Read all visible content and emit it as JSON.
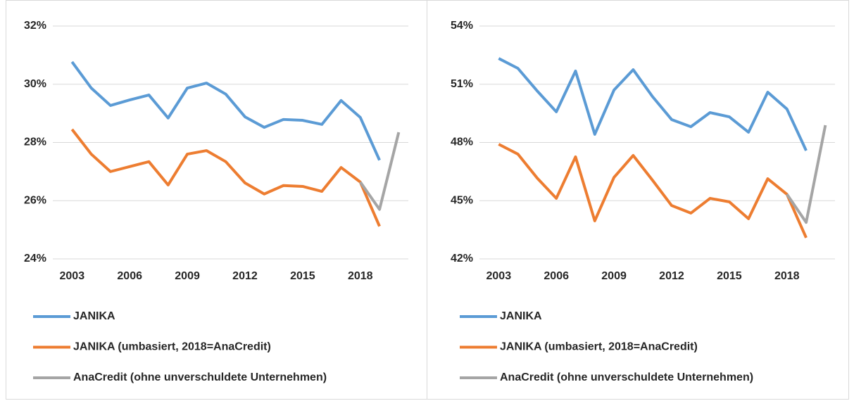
{
  "chart_data": [
    {
      "type": "line",
      "x": [
        2003,
        2004,
        2005,
        2006,
        2007,
        2008,
        2009,
        2010,
        2011,
        2012,
        2013,
        2014,
        2015,
        2016,
        2017,
        2018,
        2019,
        2020
      ],
      "xlim": [
        2002,
        2020.5
      ],
      "xticks": [
        2003,
        2006,
        2009,
        2012,
        2015,
        2018
      ],
      "ylim": [
        24,
        32
      ],
      "yticks": [
        {
          "value": 24,
          "label": "24%"
        },
        {
          "value": 26,
          "label": "26%"
        },
        {
          "value": 28,
          "label": "28%"
        },
        {
          "value": 30,
          "label": "30%"
        },
        {
          "value": 32,
          "label": "32%"
        }
      ],
      "grid": true,
      "legend": "bottom",
      "series": [
        {
          "name": "JANIKA",
          "color": "#5b9bd5",
          "values": [
            30.77,
            29.87,
            29.27,
            29.46,
            29.63,
            28.84,
            29.87,
            30.04,
            29.66,
            28.88,
            28.52,
            28.79,
            28.76,
            28.62,
            29.44,
            28.86,
            27.39,
            null
          ]
        },
        {
          "name": "JANIKA (umbasiert, 2018=AnaCredit)",
          "color": "#ed7d31",
          "values": [
            28.45,
            27.6,
            27.0,
            27.17,
            27.34,
            26.54,
            27.6,
            27.72,
            27.34,
            26.61,
            26.23,
            26.52,
            26.49,
            26.32,
            27.14,
            26.64,
            25.12,
            null
          ]
        },
        {
          "name": "AnaCredit (ohne unverschuldete Unternehmen)",
          "color": "#a5a5a5",
          "values": [
            null,
            null,
            null,
            null,
            null,
            null,
            null,
            null,
            null,
            null,
            null,
            null,
            null,
            null,
            null,
            26.64,
            25.7,
            28.35
          ]
        }
      ]
    },
    {
      "type": "line",
      "x": [
        2003,
        2004,
        2005,
        2006,
        2007,
        2008,
        2009,
        2010,
        2011,
        2012,
        2013,
        2014,
        2015,
        2016,
        2017,
        2018,
        2019,
        2020
      ],
      "xlim": [
        2002,
        2020.5
      ],
      "xticks": [
        2003,
        2006,
        2009,
        2012,
        2015,
        2018
      ],
      "ylim": [
        42,
        54
      ],
      "yticks": [
        {
          "value": 42,
          "label": "42%"
        },
        {
          "value": 45,
          "label": "45%"
        },
        {
          "value": 48,
          "label": "48%"
        },
        {
          "value": 51,
          "label": "51%"
        },
        {
          "value": 54,
          "label": "54%"
        }
      ],
      "grid": true,
      "legend": "bottom",
      "series": [
        {
          "name": "JANIKA",
          "color": "#5b9bd5",
          "values": [
            52.33,
            51.82,
            50.66,
            49.58,
            51.68,
            48.42,
            50.7,
            51.75,
            50.37,
            49.18,
            48.81,
            49.54,
            49.32,
            48.53,
            50.59,
            49.72,
            47.58,
            null
          ]
        },
        {
          "name": "JANIKA (umbasiert, 2018=AnaCredit)",
          "color": "#ed7d31",
          "values": [
            47.91,
            47.4,
            46.17,
            45.12,
            47.26,
            43.96,
            46.2,
            47.33,
            46.06,
            44.75,
            44.36,
            45.12,
            44.94,
            44.07,
            46.13,
            45.33,
            43.09,
            null
          ]
        },
        {
          "name": "AnaCredit (ohne unverschuldete Unternehmen)",
          "color": "#a5a5a5",
          "values": [
            null,
            null,
            null,
            null,
            null,
            null,
            null,
            null,
            null,
            null,
            null,
            null,
            null,
            null,
            null,
            45.33,
            43.88,
            48.89
          ]
        }
      ]
    }
  ]
}
